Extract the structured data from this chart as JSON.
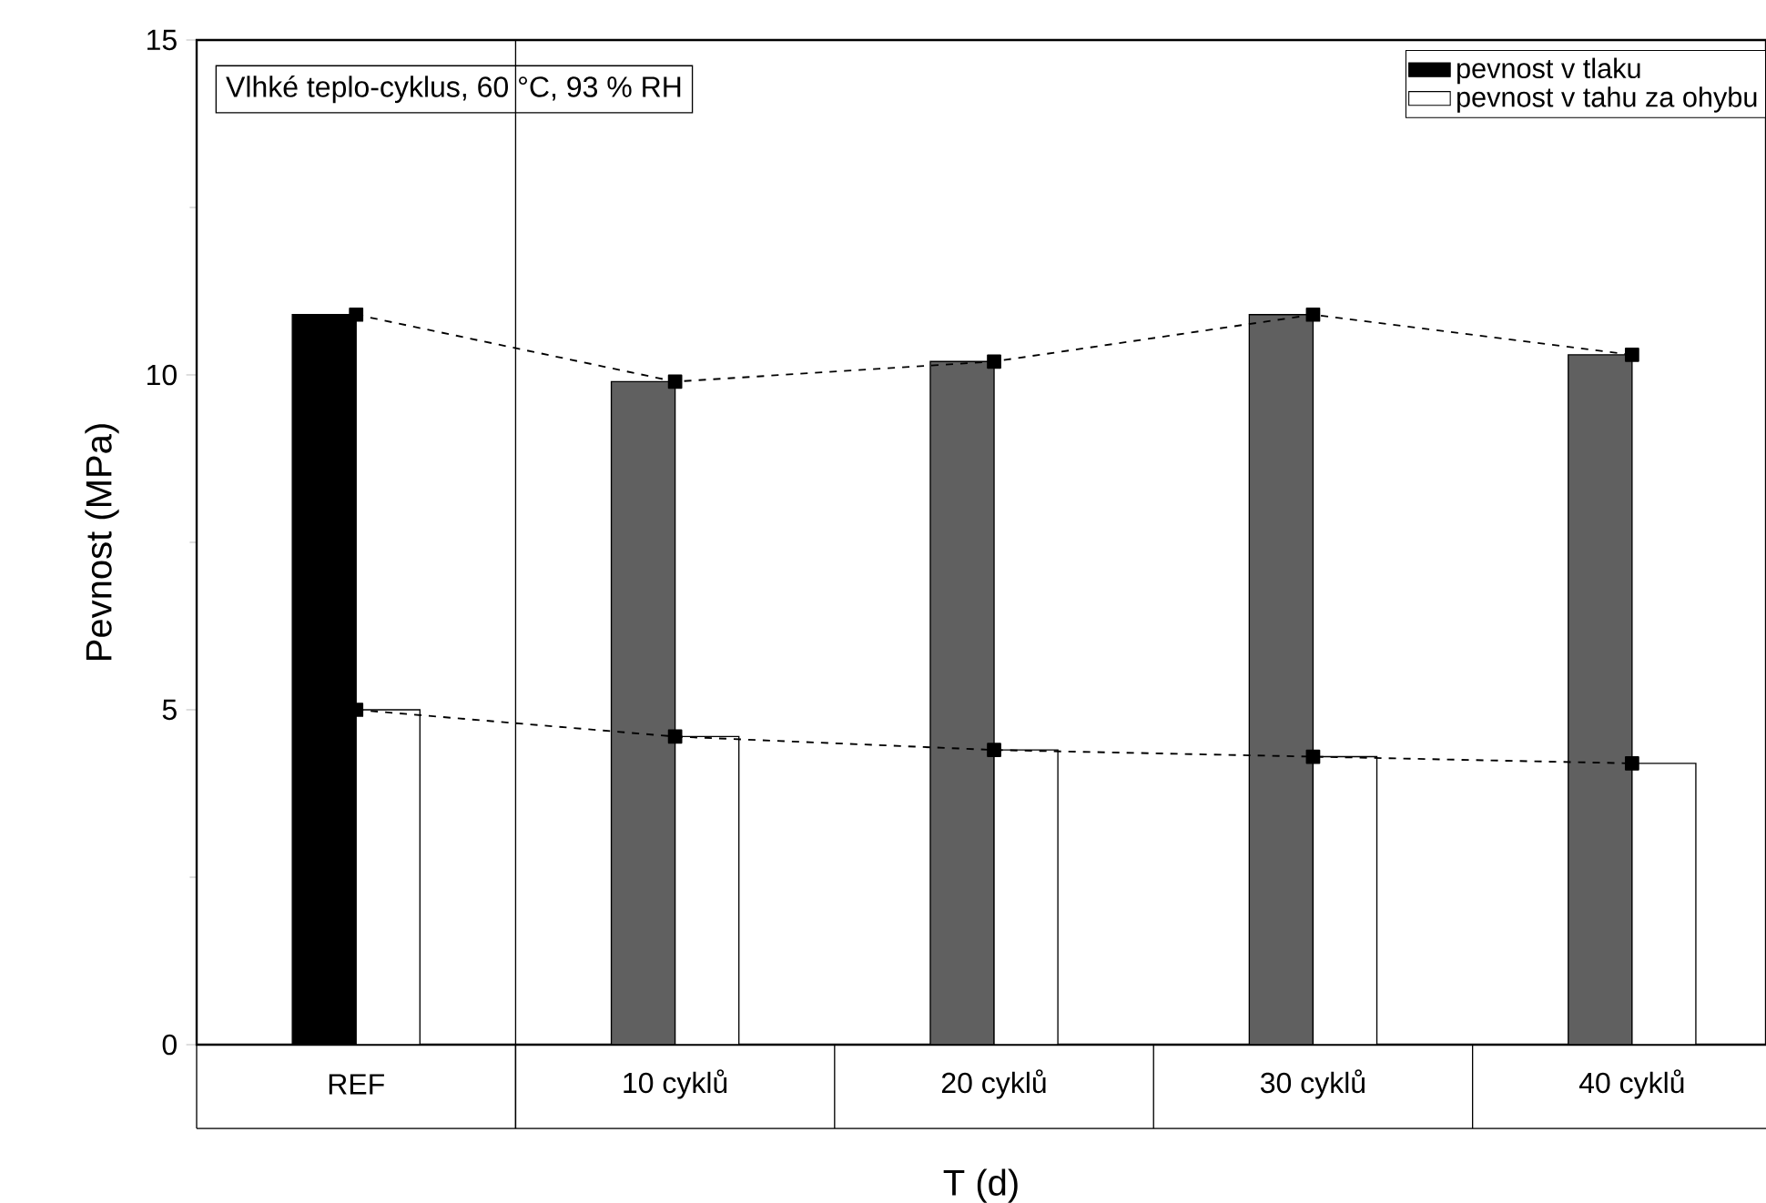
{
  "chart_data": {
    "type": "bar",
    "xlabel": "T (d)",
    "ylabel": "Pevnost (MPa)",
    "categories": [
      "REF",
      "10 cyklů",
      "20 cyklů",
      "30 cyklů",
      "40 cyklů"
    ],
    "series": [
      {
        "name": "pevnost v tlaku",
        "colors": [
          "#000000",
          "#606060",
          "#606060",
          "#606060",
          "#606060"
        ],
        "values": [
          10.9,
          9.9,
          10.2,
          10.9,
          10.3
        ]
      },
      {
        "name": "pevnost v tahu za ohybu",
        "color": "#ffffff",
        "values": [
          5.0,
          4.6,
          4.4,
          4.3,
          4.2
        ]
      },
      {
        "type": "line",
        "color": "#000000",
        "line_style": "dashed",
        "marker": "square",
        "values": [
          10.9,
          9.9,
          10.2,
          10.9,
          10.3
        ]
      },
      {
        "type": "line",
        "color": "#000000",
        "line_style": "dashed",
        "marker": "square",
        "values": [
          5.0,
          4.6,
          4.4,
          4.3,
          4.2
        ]
      }
    ],
    "ylim": [
      0,
      15
    ],
    "yticks": [
      0,
      5,
      10,
      15
    ],
    "grid": false,
    "legend": "top right",
    "annotations": [
      "Vlhké teplo-cyklus, 60 °C, 93 % RH"
    ]
  }
}
